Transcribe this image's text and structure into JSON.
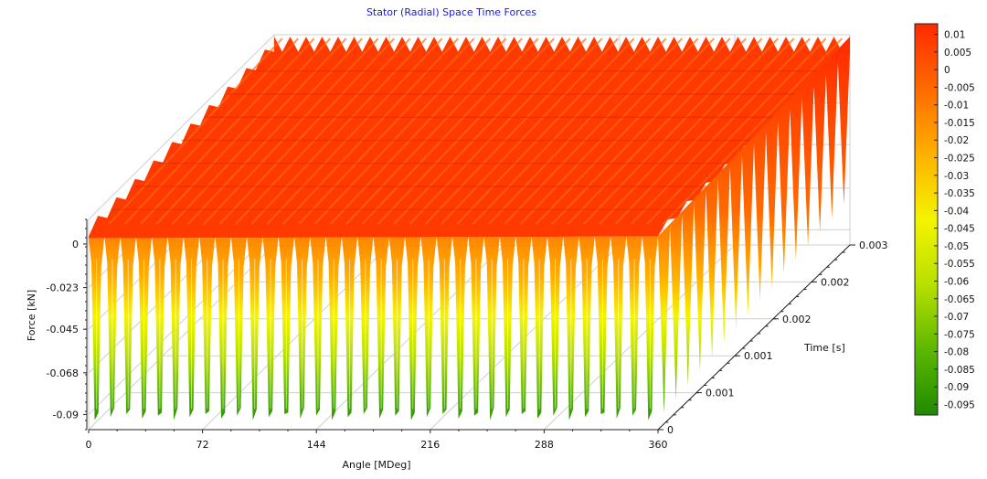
{
  "chart_data": {
    "type": "surface3d",
    "title": "Stator (Radial) Space Time Forces",
    "xlabel": "Angle [MDeg]",
    "ylabel": "Time [s]",
    "zlabel": "Force [kN]",
    "x_ticks": [
      "0",
      "72",
      "144",
      "216",
      "288",
      "360"
    ],
    "x_range": [
      0,
      360
    ],
    "y_ticks": [
      "0",
      "0.001",
      "0.001",
      "0.002",
      "0.002",
      "0.003"
    ],
    "y_range": [
      0,
      0.003
    ],
    "z_ticks": [
      "0",
      "-0.023",
      "-0.045",
      "-0.068",
      "-0.09"
    ],
    "z_range": [
      -0.098,
      0.013
    ],
    "colorbar": {
      "labels": [
        "0.01",
        "0.005",
        "0",
        "-0.005",
        "-0.01",
        "-0.015",
        "-0.02",
        "-0.025",
        "-0.03",
        "-0.035",
        "-0.04",
        "-0.045",
        "-0.05",
        "-0.055",
        "-0.06",
        "-0.065",
        "-0.07",
        "-0.075",
        "-0.08",
        "-0.085",
        "-0.09",
        "-0.095"
      ],
      "min": -0.098,
      "max": 0.013,
      "colors": [
        "#ff2a00",
        "#ff6a00",
        "#ffb000",
        "#f4f400",
        "#b8e000",
        "#5cb800",
        "#1f8a00"
      ]
    },
    "num_valleys": 36,
    "peak_force": 0.012,
    "valley_force": -0.093
  }
}
